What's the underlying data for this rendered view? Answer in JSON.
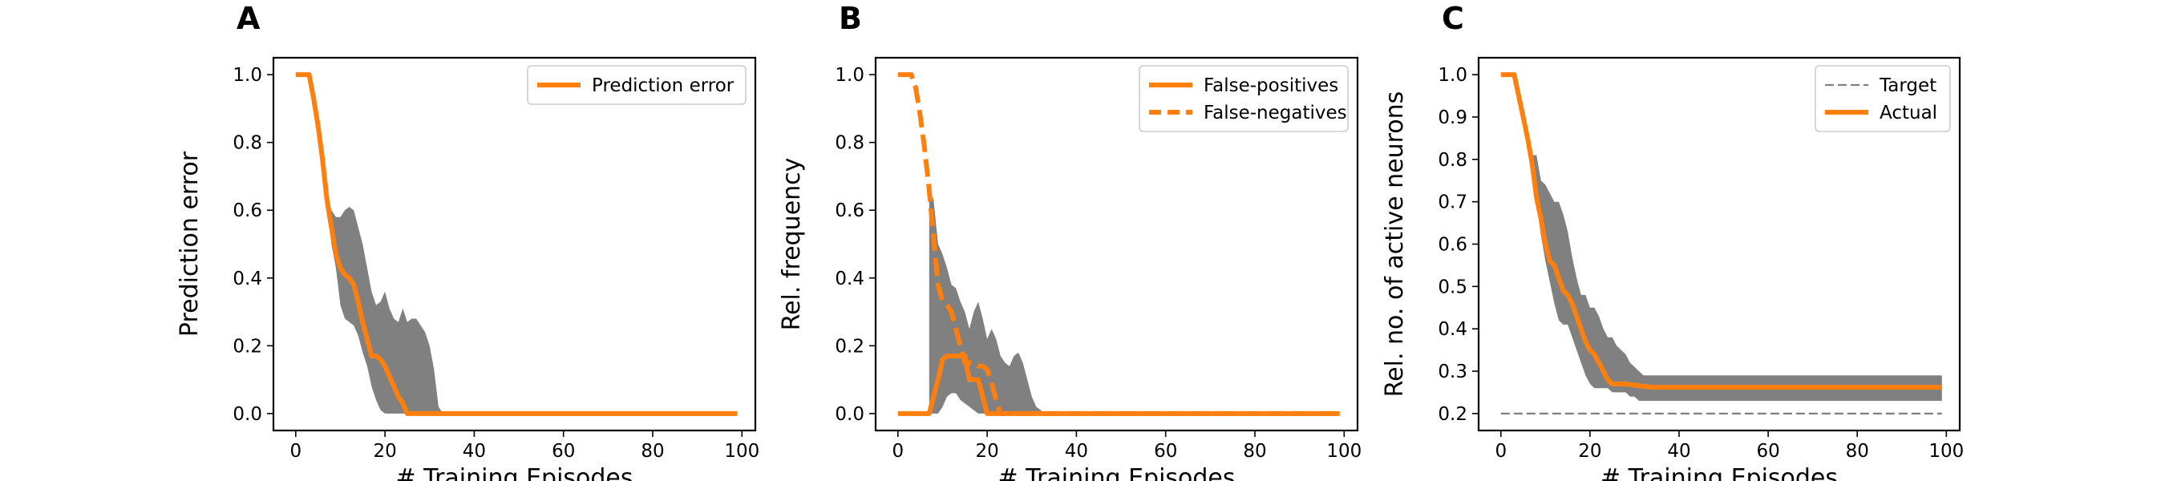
{
  "colors": {
    "orange": "#ff7f0e",
    "band": "#808080",
    "target": "#808080"
  },
  "chart_data": [
    {
      "panel": "A",
      "type": "line",
      "xlabel": "# Training Episodes",
      "ylabel": "Prediction error",
      "xlim": [
        -5,
        103
      ],
      "ylim": [
        -0.05,
        1.05
      ],
      "xticks": [
        0,
        20,
        40,
        60,
        80,
        100
      ],
      "yticks": [
        0.0,
        0.2,
        0.4,
        0.6,
        0.8,
        1.0
      ],
      "ytick_labels": [
        "0.0",
        "0.2",
        "0.4",
        "0.6",
        "0.8",
        "1.0"
      ],
      "legend_position": "top-right",
      "band": {
        "x": [
          7,
          8,
          9,
          10,
          11,
          12,
          13,
          14,
          15,
          16,
          17,
          18,
          19,
          20,
          21,
          22,
          23,
          24,
          25,
          26,
          27,
          28,
          29,
          30,
          31,
          32,
          33
        ],
        "upper": [
          0.65,
          0.6,
          0.58,
          0.58,
          0.6,
          0.61,
          0.6,
          0.55,
          0.5,
          0.43,
          0.36,
          0.32,
          0.33,
          0.36,
          0.31,
          0.28,
          0.27,
          0.31,
          0.27,
          0.28,
          0.28,
          0.26,
          0.24,
          0.2,
          0.13,
          0.02,
          0.0
        ],
        "lower": [
          0.62,
          0.5,
          0.43,
          0.32,
          0.28,
          0.27,
          0.26,
          0.23,
          0.18,
          0.14,
          0.08,
          0.04,
          0.01,
          0.0,
          0.0,
          0.0,
          0.0,
          0.0,
          0.0,
          0.0,
          0.0,
          0.0,
          0.0,
          0.0,
          0.0,
          0.0,
          0.0
        ]
      },
      "series": [
        {
          "name": "Prediction error",
          "style": "solid",
          "x": [
            0,
            3,
            4,
            5,
            6,
            7,
            8,
            9,
            10,
            11,
            12,
            13,
            14,
            15,
            16,
            17,
            18,
            19,
            20,
            21,
            22,
            23,
            24,
            25,
            26,
            27,
            28,
            30,
            32,
            40,
            60,
            80,
            99
          ],
          "y": [
            1.0,
            1.0,
            0.93,
            0.85,
            0.75,
            0.63,
            0.55,
            0.47,
            0.43,
            0.41,
            0.4,
            0.38,
            0.33,
            0.27,
            0.22,
            0.17,
            0.17,
            0.16,
            0.14,
            0.11,
            0.08,
            0.05,
            0.03,
            0.0,
            0.0,
            0.0,
            0.0,
            0.0,
            0.0,
            0.0,
            0.0,
            0.0,
            0.0
          ]
        }
      ]
    },
    {
      "panel": "B",
      "type": "line",
      "xlabel": "# Training Episodes",
      "ylabel": "Rel. frequency",
      "xlim": [
        -5,
        103
      ],
      "ylim": [
        -0.05,
        1.05
      ],
      "xticks": [
        0,
        20,
        40,
        60,
        80,
        100
      ],
      "yticks": [
        0.0,
        0.2,
        0.4,
        0.6,
        0.8,
        1.0
      ],
      "ytick_labels": [
        "0.0",
        "0.2",
        "0.4",
        "0.6",
        "0.8",
        "1.0"
      ],
      "legend_position": "top-right",
      "band": {
        "x": [
          7,
          8,
          9,
          10,
          11,
          12,
          13,
          14,
          15,
          16,
          17,
          18,
          19,
          20,
          21,
          22,
          23,
          24,
          25,
          26,
          27,
          28,
          29,
          30,
          31,
          32,
          33
        ],
        "upper": [
          0.66,
          0.63,
          0.5,
          0.47,
          0.43,
          0.38,
          0.37,
          0.33,
          0.3,
          0.25,
          0.3,
          0.33,
          0.28,
          0.22,
          0.25,
          0.22,
          0.17,
          0.15,
          0.14,
          0.17,
          0.18,
          0.15,
          0.1,
          0.05,
          0.02,
          0.01,
          0.0
        ],
        "lower": [
          0.0,
          0.0,
          0.0,
          0.02,
          0.05,
          0.06,
          0.06,
          0.04,
          0.03,
          0.02,
          0.01,
          0.0,
          0.0,
          0.0,
          0.0,
          0.0,
          0.0,
          0.0,
          0.0,
          0.0,
          0.0,
          0.0,
          0.0,
          0.0,
          0.0,
          0.0,
          0.0
        ]
      },
      "series": [
        {
          "name": "False-positives",
          "style": "solid",
          "x": [
            0,
            7,
            8,
            9,
            10,
            11,
            15,
            16,
            17,
            18,
            19,
            20,
            21,
            40,
            60,
            80,
            99
          ],
          "y": [
            0.0,
            0.0,
            0.05,
            0.1,
            0.16,
            0.17,
            0.17,
            0.1,
            0.1,
            0.1,
            0.05,
            0.0,
            0.0,
            0.0,
            0.0,
            0.0,
            0.0
          ]
        },
        {
          "name": "False-negatives",
          "style": "dashed",
          "x": [
            0,
            3,
            4,
            5,
            6,
            7,
            8,
            9,
            10,
            11,
            12,
            13,
            14,
            15,
            16,
            17,
            18,
            19,
            20,
            21,
            22,
            23,
            24,
            40,
            60,
            80,
            99
          ],
          "y": [
            1.0,
            1.0,
            0.96,
            0.88,
            0.78,
            0.66,
            0.52,
            0.38,
            0.33,
            0.32,
            0.3,
            0.25,
            0.2,
            0.15,
            0.15,
            0.15,
            0.14,
            0.14,
            0.13,
            0.09,
            0.04,
            0.0,
            0.0,
            0.0,
            0.0,
            0.0,
            0.0
          ]
        }
      ]
    },
    {
      "panel": "C",
      "type": "line",
      "xlabel": "# Training Episodes",
      "ylabel": "Rel. no. of active neurons",
      "xlim": [
        -5,
        103
      ],
      "ylim": [
        0.16,
        1.04
      ],
      "xticks": [
        0,
        20,
        40,
        60,
        80,
        100
      ],
      "yticks": [
        0.2,
        0.3,
        0.4,
        0.5,
        0.6,
        0.7,
        0.8,
        0.9,
        1.0
      ],
      "ytick_labels": [
        "0.2",
        "0.3",
        "0.4",
        "0.5",
        "0.6",
        "0.7",
        "0.8",
        "0.9",
        "1.0"
      ],
      "legend_position": "top-right",
      "band": {
        "x": [
          7,
          8,
          9,
          10,
          11,
          12,
          13,
          14,
          15,
          16,
          17,
          18,
          19,
          20,
          21,
          22,
          23,
          24,
          25,
          26,
          27,
          28,
          29,
          30,
          31,
          32,
          33,
          34,
          40,
          60,
          80,
          99
        ],
        "upper": [
          0.81,
          0.81,
          0.75,
          0.74,
          0.72,
          0.7,
          0.7,
          0.67,
          0.63,
          0.57,
          0.52,
          0.48,
          0.48,
          0.45,
          0.45,
          0.43,
          0.4,
          0.38,
          0.38,
          0.36,
          0.35,
          0.34,
          0.32,
          0.31,
          0.3,
          0.29,
          0.29,
          0.29,
          0.29,
          0.29,
          0.29,
          0.29
        ],
        "lower": [
          0.8,
          0.7,
          0.62,
          0.56,
          0.51,
          0.46,
          0.42,
          0.41,
          0.41,
          0.38,
          0.35,
          0.32,
          0.29,
          0.27,
          0.26,
          0.26,
          0.26,
          0.26,
          0.25,
          0.25,
          0.25,
          0.25,
          0.24,
          0.24,
          0.23,
          0.23,
          0.23,
          0.23,
          0.23,
          0.23,
          0.23,
          0.23
        ]
      },
      "series": [
        {
          "name": "Target",
          "style": "dashed-thin",
          "x": [
            0,
            99
          ],
          "y": [
            0.2,
            0.2
          ]
        },
        {
          "name": "Actual",
          "style": "solid",
          "x": [
            0,
            3,
            4,
            5,
            6,
            7,
            8,
            9,
            10,
            11,
            12,
            13,
            14,
            15,
            16,
            17,
            18,
            19,
            20,
            21,
            22,
            23,
            24,
            25,
            26,
            27,
            28,
            30,
            34,
            40,
            60,
            80,
            99
          ],
          "y": [
            1.0,
            1.0,
            0.95,
            0.9,
            0.85,
            0.79,
            0.71,
            0.66,
            0.6,
            0.56,
            0.55,
            0.52,
            0.49,
            0.48,
            0.46,
            0.43,
            0.4,
            0.37,
            0.35,
            0.34,
            0.32,
            0.3,
            0.28,
            0.27,
            0.27,
            0.27,
            0.27,
            0.267,
            0.262,
            0.262,
            0.262,
            0.262,
            0.262
          ]
        }
      ]
    }
  ]
}
